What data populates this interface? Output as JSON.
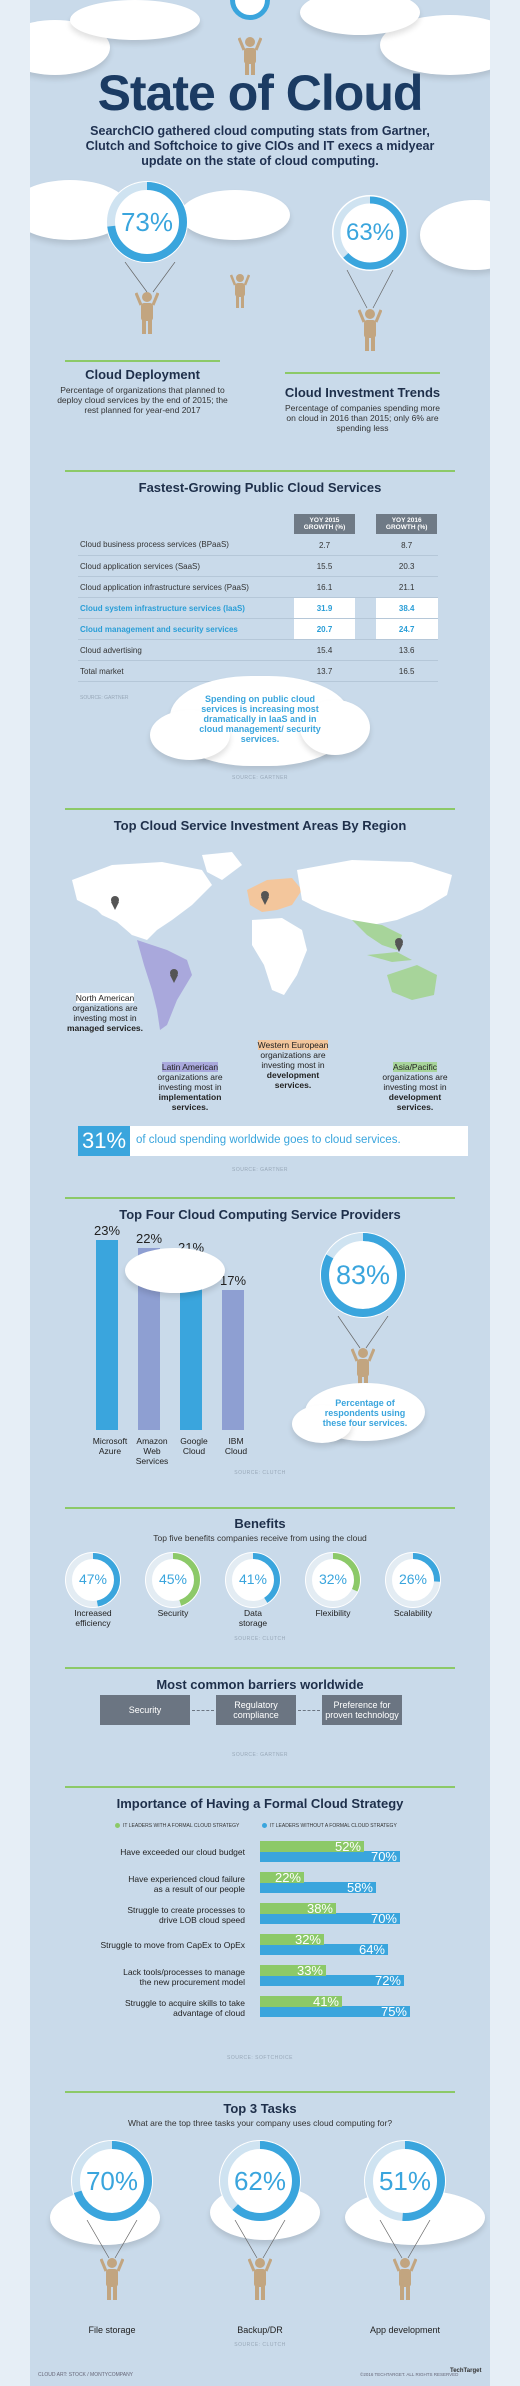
{
  "header": {
    "title": "State of Cloud",
    "subtitle": "SearchCIO gathered cloud computing stats from Gartner, Clutch and Softchoice to give CIOs and IT execs a midyear update on the state of cloud computing."
  },
  "deployment": {
    "percent": "73%",
    "value": 73,
    "title": "Cloud Deployment",
    "text": "Percentage of organizations that planned to deploy cloud services by the end of 2015; the rest planned for year-end 2017"
  },
  "investment": {
    "percent": "63%",
    "value": 63,
    "title": "Cloud Investment Trends",
    "text": "Percentage of companies spending more on cloud in 2016 than 2015; only 6% are spending less"
  },
  "growth": {
    "title": "Fastest-Growing Public Cloud Services",
    "col1": "YOY 2015 GROWTH (%)",
    "col2": "YOY 2016 GROWTH (%)",
    "rows": [
      {
        "label": "Cloud business process services (BPaaS)",
        "v1": "2.7",
        "v2": "8.7"
      },
      {
        "label": "Cloud application services (SaaS)",
        "v1": "15.5",
        "v2": "20.3"
      },
      {
        "label": "Cloud application infrastructure services (PaaS)",
        "v1": "16.1",
        "v2": "21.1"
      },
      {
        "label": "Cloud system infrastructure services (IaaS)",
        "v1": "31.9",
        "v2": "38.4"
      },
      {
        "label": "Cloud management and security services",
        "v1": "20.7",
        "v2": "24.7"
      },
      {
        "label": "Cloud advertising",
        "v1": "15.4",
        "v2": "13.6"
      },
      {
        "label": "Total market",
        "v1": "13.7",
        "v2": "16.5"
      }
    ],
    "source": "SOURCE: GARTNER",
    "note": "Spending on public cloud services is increasing most dramatically in IaaS and in cloud management/ security services."
  },
  "regions": {
    "title": "Top Cloud Service Investment Areas By Region",
    "na": {
      "name": "North American",
      "text": "organizations are investing most in",
      "focus": "managed services."
    },
    "la": {
      "name": "Latin American",
      "text": "organizations are investing most in",
      "focus": "implementation services."
    },
    "we": {
      "name": "Western European",
      "text": "organizations are investing most in",
      "focus": "development services."
    },
    "ap": {
      "name": "Asia/Pacific",
      "text": "organizations are investing most in",
      "focus": "development services."
    },
    "banner_pct": "31%",
    "banner_text": "of cloud spending worldwide goes to cloud services.",
    "source": "SOURCE: GARTNER"
  },
  "providers": {
    "title": "Top Four Cloud Computing Service Providers",
    "chart_data": {
      "type": "bar",
      "categories": [
        "Microsoft Azure",
        "Amazon Web Services",
        "Google Cloud",
        "IBM Cloud"
      ],
      "values": [
        23,
        22,
        21,
        17
      ],
      "labels": [
        "23%",
        "22%",
        "21%",
        "17%"
      ],
      "colors": [
        "#3aa5dd",
        "#8e9fd2",
        "#3aa5dd",
        "#8e9fd2"
      ]
    },
    "lbl1a": "Microsoft",
    "lbl1b": "Azure",
    "lbl2a": "Amazon",
    "lbl2b": "Web",
    "lbl2c": "Services",
    "lbl3a": "Google",
    "lbl3b": "Cloud",
    "lbl4a": "IBM",
    "lbl4b": "Cloud",
    "percent": "83%",
    "value": 83,
    "note": "Percentage of respondents using these four services.",
    "source": "SOURCE: CLUTCH"
  },
  "benefits": {
    "title": "Benefits",
    "subtitle": "Top five benefits companies receive from using the cloud",
    "items": [
      {
        "pct": "47%",
        "value": 47,
        "label1": "Increased",
        "label2": "efficiency",
        "color": "#3aa5dd"
      },
      {
        "pct": "45%",
        "value": 45,
        "label1": "Security",
        "label2": "",
        "color": "#8cc968"
      },
      {
        "pct": "41%",
        "value": 41,
        "label1": "Data",
        "label2": "storage",
        "color": "#3aa5dd"
      },
      {
        "pct": "32%",
        "value": 32,
        "label1": "Flexibility",
        "label2": "",
        "color": "#8cc968"
      },
      {
        "pct": "26%",
        "value": 26,
        "label1": "Scalability",
        "label2": "",
        "color": "#3aa5dd"
      }
    ],
    "source": "SOURCE: CLUTCH"
  },
  "barriers": {
    "title": "Most common barriers worldwide",
    "b1": "Security",
    "b2a": "Regulatory",
    "b2b": "compliance",
    "b3a": "Preference for",
    "b3b": "proven technology",
    "source": "SOURCE: GARTNER"
  },
  "strategy": {
    "title": "Importance of Having a Formal Cloud Strategy",
    "legend1": "IT LEADERS WITH A FORMAL CLOUD STRATEGY",
    "legend2": "IT LEADERS WITHOUT A FORMAL CLOUD STRATEGY",
    "chart_data": {
      "type": "bar",
      "series": [
        {
          "name": "IT LEADERS WITH A FORMAL CLOUD STRATEGY",
          "values": [
            52,
            22,
            38,
            32,
            33,
            41
          ],
          "color": "#8cc968"
        },
        {
          "name": "IT LEADERS WITHOUT A FORMAL CLOUD STRATEGY",
          "values": [
            70,
            58,
            70,
            64,
            72,
            75
          ],
          "color": "#3aa5dd"
        }
      ]
    },
    "rows": [
      {
        "l1": "Have exceeded our cloud budget",
        "l2": "",
        "a": "52%",
        "b": "70%"
      },
      {
        "l1": "Have experienced cloud failure",
        "l2": "as a result of our people",
        "a": "22%",
        "b": "58%"
      },
      {
        "l1": "Struggle to create processes to",
        "l2": "drive LOB cloud speed",
        "a": "38%",
        "b": "70%"
      },
      {
        "l1": "Struggle to move from CapEx to OpEx",
        "l2": "",
        "a": "32%",
        "b": "64%"
      },
      {
        "l1": "Lack tools/processes to manage",
        "l2": "the new procurement model",
        "a": "33%",
        "b": "72%"
      },
      {
        "l1": "Struggle to acquire skills to take",
        "l2": "advantage of cloud",
        "a": "41%",
        "b": "75%"
      }
    ],
    "source": "SOURCE: SOFTCHOICE"
  },
  "tasks": {
    "title": "Top 3 Tasks",
    "subtitle": "What are the top three tasks your company uses cloud computing for?",
    "items": [
      {
        "pct": "70%",
        "value": 70,
        "label": "File storage"
      },
      {
        "pct": "62%",
        "value": 62,
        "label": "Backup/DR"
      },
      {
        "pct": "51%",
        "value": 51,
        "label": "App development"
      }
    ],
    "source": "SOURCE: CLUTCH"
  },
  "footer": {
    "left": "CLOUD ART: STOCK / MONTYCOMPANY",
    "right": "©2016 TECHTARGET. ALL RIGHTS RESERVED",
    "brand": "TechTarget"
  }
}
